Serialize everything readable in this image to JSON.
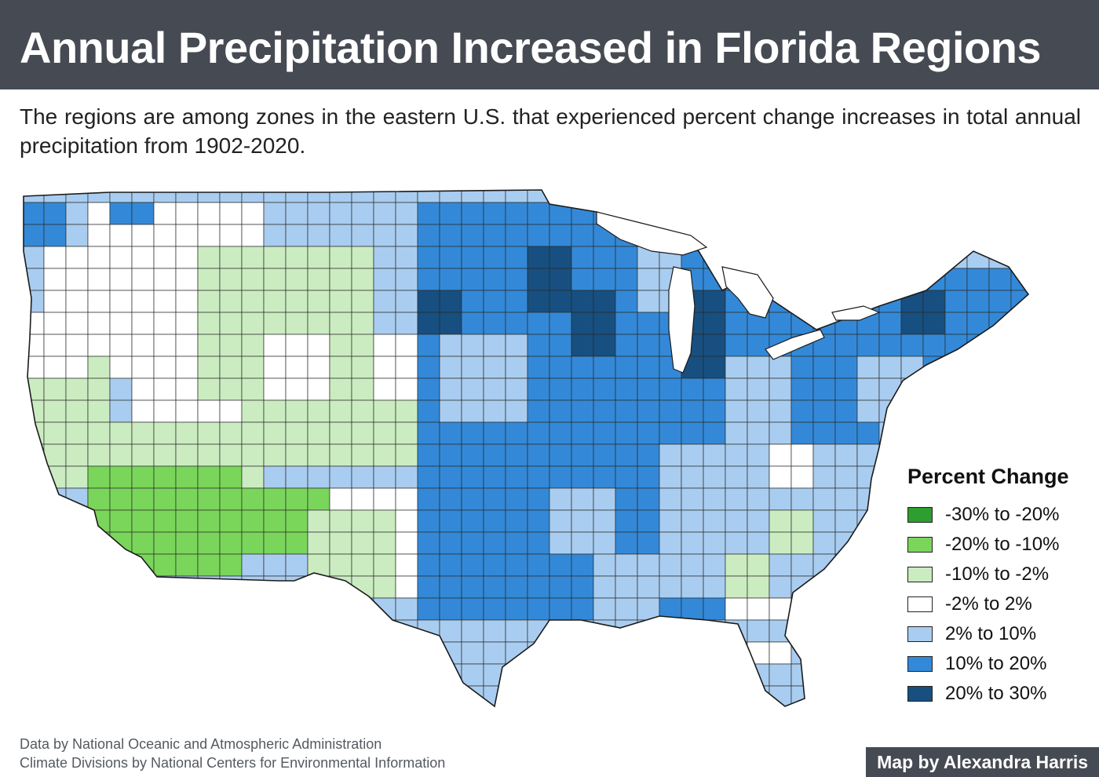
{
  "header": {
    "title": "Annual Precipitation Increased in Florida Regions",
    "subtitle": "The regions are among zones in the eastern U.S. that experienced percent change increases in total annual precipitation from 1902-2020."
  },
  "legend": {
    "title": "Percent Change",
    "items": [
      {
        "label": "-30% to -20%",
        "color": "#2e9e2e"
      },
      {
        "label": "-20% to -10%",
        "color": "#7ad65a"
      },
      {
        "label": "-10% to -2%",
        "color": "#cbecc1"
      },
      {
        "label": "-2% to 2%",
        "color": "#ffffff"
      },
      {
        "label": "2% to 10%",
        "color": "#a9cdf0"
      },
      {
        "label": "10% to 20%",
        "color": "#3389d8"
      },
      {
        "label": "20% to 30%",
        "color": "#174f80"
      }
    ]
  },
  "credits": {
    "line1": "Data by National Oceanic and Atmospheric Administration",
    "line2": "Climate Divisions by National Centers for Environmental Information"
  },
  "author": "Map by Alexandra Harris"
}
